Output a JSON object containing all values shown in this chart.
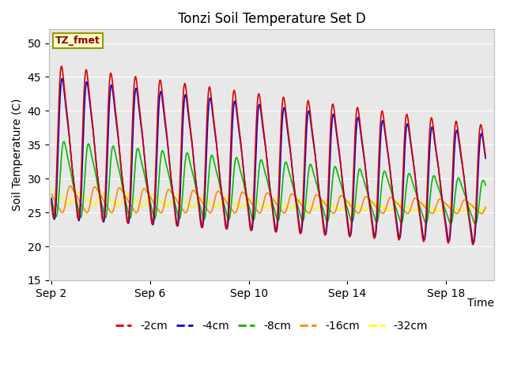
{
  "title": "Tonzi Soil Temperature Set D",
  "xlabel": "Time",
  "ylabel": "Soil Temperature (C)",
  "ylim": [
    15,
    52
  ],
  "yticks": [
    15,
    20,
    25,
    30,
    35,
    40,
    45,
    50
  ],
  "legend_label": "TZ_fmet",
  "legend_box_facecolor": "#ffffcc",
  "legend_box_edgecolor": "#999900",
  "plot_bg_color": "#e8e8e8",
  "series_colors": {
    "-2cm": "#dd0000",
    "-4cm": "#0000dd",
    "-8cm": "#00bb00",
    "-16cm": "#ff8800",
    "-32cm": "#ffff00"
  },
  "xtick_labels": [
    "Sep 2",
    "Sep 6",
    "Sep 10",
    "Sep 14",
    "Sep 18"
  ],
  "xtick_positions": [
    2,
    6,
    10,
    14,
    18
  ],
  "xlim": [
    1.9,
    19.95
  ]
}
